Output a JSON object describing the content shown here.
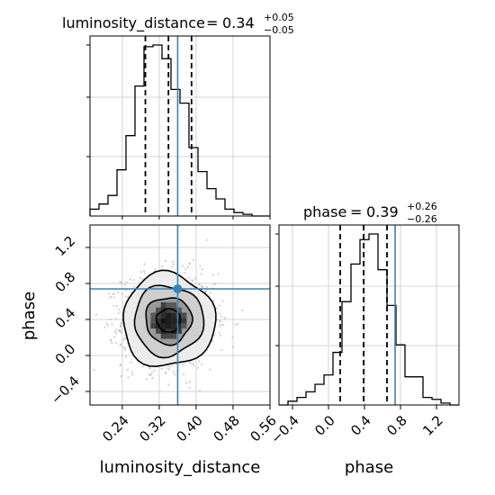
{
  "chart_data": {
    "type": "corner",
    "parameters": [
      "luminosity_distance",
      "phase"
    ],
    "truths": {
      "luminosity_distance": 0.36,
      "phase": 0.74
    },
    "colors": {
      "truth": "#3b82b8",
      "hist": "#000000",
      "grid": "#c8c8c8"
    },
    "grid": true,
    "titles": [
      {
        "name": "luminosity_distance",
        "median": "0.34",
        "plus": "+0.05",
        "minus": "−0.05"
      },
      {
        "name": "phase",
        "median": "0.39",
        "plus": "+0.26",
        "minus": "−0.26"
      }
    ],
    "axes": {
      "luminosity_distance": {
        "label": "luminosity_distance",
        "lim": [
          0.17,
          0.56
        ],
        "ticks": [
          0.24,
          0.32,
          0.4,
          0.48,
          0.56
        ],
        "tick_labels": [
          "0.24",
          "0.32",
          "0.40",
          "0.48",
          "0.56"
        ]
      },
      "phase": {
        "label": "phase",
        "lim": [
          -0.55,
          1.45
        ],
        "ticks": [
          -0.4,
          0.0,
          0.4,
          0.8,
          1.2
        ],
        "tick_labels": [
          "−0.4",
          "0.0",
          "0.4",
          "0.8",
          "1.2"
        ]
      }
    },
    "marginals": [
      {
        "param": "luminosity_distance",
        "edges": [
          0.17,
          0.1895,
          0.209,
          0.2285,
          0.248,
          0.2675,
          0.287,
          0.3065,
          0.326,
          0.3455,
          0.365,
          0.3845,
          0.404,
          0.4235,
          0.443,
          0.4625,
          0.482,
          0.5015,
          0.521,
          0.5405,
          0.56
        ],
        "counts": [
          0.04,
          0.07,
          0.12,
          0.27,
          0.47,
          0.76,
          0.99,
          1.0,
          0.92,
          0.74,
          0.66,
          0.4,
          0.26,
          0.16,
          0.1,
          0.04,
          0.02,
          0.01,
          0.0,
          0.0
        ],
        "quantiles": [
          0.29,
          0.34,
          0.39
        ]
      },
      {
        "param": "phase",
        "edges": [
          -0.55,
          -0.45,
          -0.35,
          -0.25,
          -0.15,
          -0.05,
          0.05,
          0.15,
          0.25,
          0.35,
          0.45,
          0.55,
          0.65,
          0.75,
          0.85,
          0.95,
          1.05,
          1.15,
          1.25,
          1.35,
          1.45
        ],
        "counts": [
          0.0,
          0.02,
          0.04,
          0.07,
          0.11,
          0.16,
          0.28,
          0.55,
          0.75,
          0.88,
          0.91,
          0.72,
          0.53,
          0.32,
          0.15,
          0.15,
          0.04,
          0.03,
          0.01,
          0.0
        ],
        "quantiles": [
          0.13,
          0.39,
          0.65
        ]
      }
    ],
    "joint": {
      "x": "luminosity_distance",
      "y": "phase",
      "center": [
        0.34,
        0.39
      ],
      "sigma": [
        0.05,
        0.26
      ],
      "contour_levels": [
        "0.5 sigma",
        "1 sigma",
        "1.5 sigma",
        "2 sigma"
      ]
    }
  }
}
